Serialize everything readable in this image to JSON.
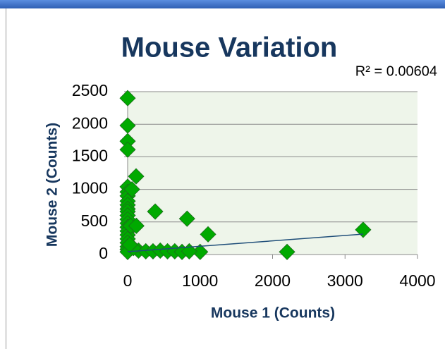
{
  "chart_data": {
    "type": "scatter",
    "title": "Mouse Variation",
    "annotation": "R² = 0.00604",
    "xlabel": "Mouse 1 (Counts)",
    "ylabel": "Mouse 2 (Counts)",
    "xlim": [
      0,
      4000
    ],
    "xticks": [
      0,
      1000,
      2000,
      3000,
      4000
    ],
    "ylim": [
      0,
      2500
    ],
    "yticks": [
      0,
      500,
      1000,
      1500,
      2000,
      2500
    ],
    "grid": true,
    "series": [
      {
        "color": "#00aa00",
        "x": [
          0,
          0,
          0,
          0,
          0,
          0,
          0,
          0,
          0,
          0,
          0,
          0,
          0,
          0,
          0,
          0,
          0,
          0,
          0,
          0,
          0,
          0,
          117,
          60,
          40,
          120,
          380,
          820,
          1110,
          2200,
          3250,
          1000,
          150,
          250,
          350,
          450,
          550,
          650,
          750,
          850,
          80,
          30
        ],
        "y": [
          2400,
          1980,
          1740,
          1610,
          1040,
          960,
          900,
          820,
          760,
          700,
          660,
          600,
          540,
          480,
          420,
          360,
          300,
          240,
          180,
          120,
          80,
          40,
          1200,
          1000,
          440,
          440,
          660,
          550,
          310,
          40,
          380,
          40,
          60,
          50,
          50,
          60,
          50,
          50,
          40,
          50,
          100,
          150
        ]
      }
    ]
  }
}
